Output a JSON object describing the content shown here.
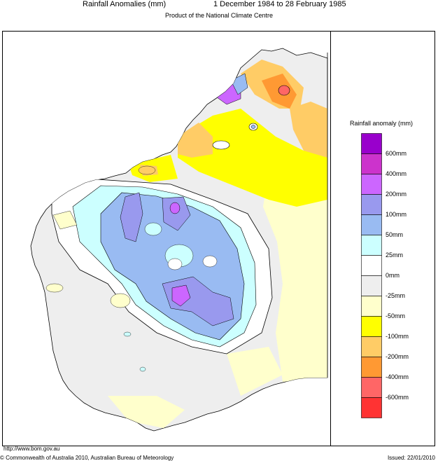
{
  "header": {
    "title": "Rainfall Anomalies (mm)",
    "period": "1 December 1984 to 28 February 1985",
    "subtitle": "Product of the National Climate Centre"
  },
  "legend": {
    "title": "Rainfall anomaly (mm)",
    "items": [
      {
        "label": "600mm",
        "color": "#9900cc"
      },
      {
        "label": "400mm",
        "color": "#cc33cc"
      },
      {
        "label": "200mm",
        "color": "#cc66ff"
      },
      {
        "label": "100mm",
        "color": "#9999ee"
      },
      {
        "label": "50mm",
        "color": "#99bbf2"
      },
      {
        "label": "25mm",
        "color": "#ccffff"
      },
      {
        "label": "0mm",
        "color": "#ffffff"
      },
      {
        "label": "-25mm",
        "color": "#eeeeee"
      },
      {
        "label": "-50mm",
        "color": "#ffffcc"
      },
      {
        "label": "-100mm",
        "color": "#ffff00"
      },
      {
        "label": "-200mm",
        "color": "#ffcc66"
      },
      {
        "label": "-400mm",
        "color": "#ff9933"
      },
      {
        "label": "-600mm",
        "color": "#ff6666"
      },
      {
        "extra": true,
        "color": "#ff3333"
      }
    ]
  },
  "footer": {
    "url": "http://www.bom.gov.au",
    "copyright": "© Commonwealth of Australia 2010, Australian Bureau of Meteorology",
    "issued": "Issued: 22/01/2010"
  }
}
